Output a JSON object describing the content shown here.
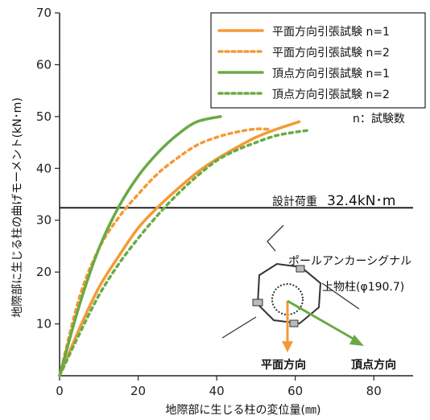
{
  "chart_data": {
    "type": "line",
    "xlabel": "地際部に生じる柱の変位量(㎜)",
    "ylabel": "地際部に生じる柱の曲げモーメント(kN･m)",
    "xlim": [
      0,
      90
    ],
    "ylim": [
      0,
      70
    ],
    "xticks": [
      0,
      20,
      40,
      60,
      80
    ],
    "yticks": [
      10,
      20,
      30,
      40,
      50,
      60,
      70
    ],
    "x_origin_label": "0",
    "grid": false,
    "legend_position": "top-right",
    "series": [
      {
        "name": "平面方向引張試験 n=1",
        "color": "#f39a36",
        "style": "solid",
        "x": [
          0,
          5,
          10,
          15,
          20,
          25,
          30,
          35,
          40,
          45,
          50,
          55,
          61
        ],
        "y": [
          0,
          9,
          17,
          23,
          28.5,
          32.5,
          36,
          39.2,
          41.8,
          44,
          46,
          47.5,
          49
        ]
      },
      {
        "name": "平面方向引張試験 n=2",
        "color": "#f39a36",
        "style": "dotted",
        "x": [
          0,
          5,
          10,
          15,
          20,
          25,
          30,
          35,
          40,
          45,
          50,
          54
        ],
        "y": [
          0,
          15,
          24.5,
          30.5,
          35,
          39,
          42,
          44.5,
          46,
          47,
          47.6,
          47.5
        ]
      },
      {
        "name": "頂点方向引張試験 n=1",
        "color": "#6aaa45",
        "style": "solid",
        "x": [
          0,
          5,
          10,
          15,
          20,
          25,
          30,
          35,
          41
        ],
        "y": [
          0,
          13.5,
          24.5,
          32.5,
          38.5,
          43,
          46.5,
          49,
          50
        ]
      },
      {
        "name": "頂点方向引張試験 n=2",
        "color": "#6aaa45",
        "style": "dotted",
        "x": [
          0,
          5,
          10,
          15,
          20,
          25,
          30,
          35,
          40,
          45,
          50,
          55,
          60,
          63
        ],
        "y": [
          0,
          8,
          15.5,
          21.5,
          26.5,
          31,
          35,
          38.5,
          41.5,
          43.5,
          45,
          46.3,
          47,
          47.3
        ]
      }
    ],
    "reference_line": {
      "y": 32.4,
      "label": "設計荷重",
      "value_label": "32.4kN･m"
    },
    "annotations": {
      "sample_count": "n：試験数",
      "pole_type": "ポールアンカーシグナル",
      "pole_upper": "上物柱(φ190.7)",
      "dir_plane": "平面方向",
      "dir_vertex": "頂点方向"
    }
  },
  "colors": {
    "plane": "#f39a36",
    "vertex": "#6aaa45",
    "axis": "#222222"
  }
}
